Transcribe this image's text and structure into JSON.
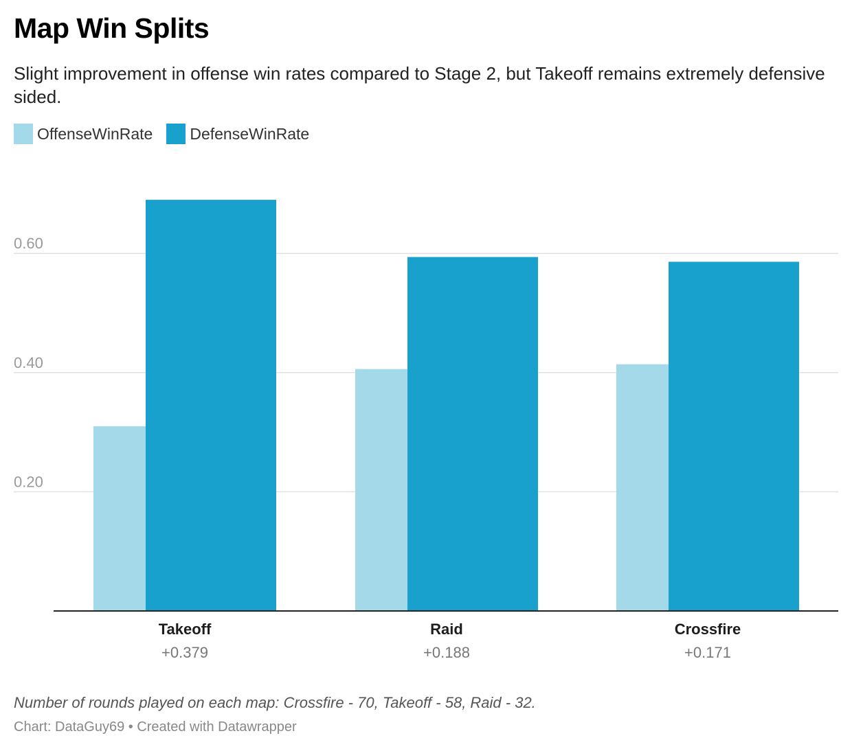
{
  "header": {
    "title": "Map Win Splits",
    "subtitle": "Slight improvement in offense win rates compared to Stage 2, but Takeoff remains extremely defensive sided."
  },
  "colors": {
    "offense": "#a4d9ea",
    "defense": "#18a1cd",
    "grid": "#e2e2e2",
    "axis": "#222222",
    "tick_text": "#9a9a9a"
  },
  "chart_data": {
    "type": "bar",
    "title": "Map Win Splits",
    "subtitle": "Slight improvement in offense win rates compared to Stage 2, but Takeoff remains extremely defensive sided.",
    "categories": [
      "Takeoff",
      "Raid",
      "Crossfire"
    ],
    "category_sublabels": [
      "+0.379",
      "+0.188",
      "+0.171"
    ],
    "series": [
      {
        "name": "OffenseWinRate",
        "values": [
          0.31,
          0.406,
          0.414
        ]
      },
      {
        "name": "DefenseWinRate",
        "values": [
          0.69,
          0.594,
          0.586
        ]
      }
    ],
    "yticks": [
      "0.20",
      "0.40",
      "0.60"
    ],
    "ylim": [
      0,
      0.7
    ],
    "grid": true,
    "legend": "top-left"
  },
  "footer": {
    "notes": "Number of rounds played on each map: Crossfire - 70, Takeoff - 58, Raid - 32.",
    "credit": "Chart: DataGuy69 • Created with Datawrapper"
  }
}
